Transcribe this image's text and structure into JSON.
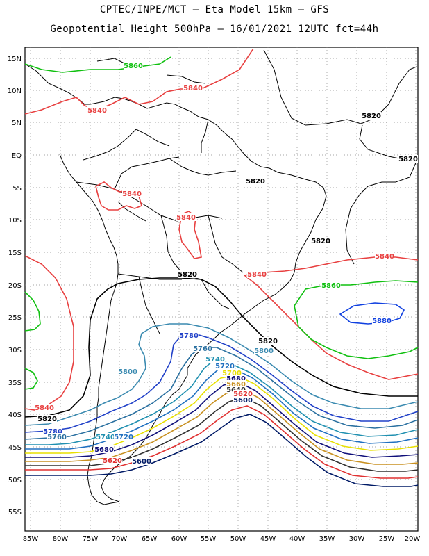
{
  "title_line1": "CPTEC/INPE/MCT –  Eta Model 15km – GFS",
  "title_line2": "Geopotential Height 500hPa – 16/01/2021 12UTC fct=44h",
  "lat_labels": [
    "15N",
    "10N",
    "5N",
    "EQ",
    "5S",
    "10S",
    "15S",
    "20S",
    "25S",
    "30S",
    "35S",
    "40S",
    "45S",
    "50S",
    "55S"
  ],
  "lon_labels": [
    "85W",
    "80W",
    "75W",
    "70W",
    "65W",
    "60W",
    "55W",
    "50W",
    "45W",
    "40W",
    "35W",
    "30W",
    "25W",
    "20W"
  ],
  "contour_colors": {
    "5600": "#001a66",
    "5620": "#e03030",
    "5640": "#303030",
    "5660": "#c89020",
    "5680": "#10107a",
    "5700": "#e8e000",
    "5720": "#2070c0",
    "5740": "#2090b0",
    "5760": "#2a70a0",
    "5780": "#2040c8",
    "5800": "#3a8ab0",
    "5820": "#000000",
    "5840": "#e84040",
    "5860": "#10c010",
    "5880": "#1040e0"
  },
  "contour_labels": [
    {
      "text": "5860",
      "color": "#10c010"
    },
    {
      "text": "5840",
      "color": "#e84040"
    },
    {
      "text": "5840",
      "color": "#e84040"
    },
    {
      "text": "5820",
      "color": "#000000"
    },
    {
      "text": "5820",
      "color": "#000000"
    },
    {
      "text": "5820",
      "color": "#000000"
    },
    {
      "text": "5840",
      "color": "#e84040"
    },
    {
      "text": "5840",
      "color": "#e84040"
    },
    {
      "text": "5820",
      "color": "#000000"
    },
    {
      "text": "5820",
      "color": "#000000"
    },
    {
      "text": "5840",
      "color": "#e84040"
    },
    {
      "text": "5840",
      "color": "#e84040"
    },
    {
      "text": "5860",
      "color": "#10c010"
    },
    {
      "text": "5880",
      "color": "#1040e0"
    },
    {
      "text": "5820",
      "color": "#000000"
    },
    {
      "text": "5780",
      "color": "#2040c8"
    },
    {
      "text": "5800",
      "color": "#3a8ab0"
    },
    {
      "text": "5760",
      "color": "#2a70a0"
    },
    {
      "text": "5740",
      "color": "#2090b0"
    },
    {
      "text": "5720",
      "color": "#2070c0"
    },
    {
      "text": "5800",
      "color": "#3a8ab0"
    },
    {
      "text": "5700",
      "color": "#e8e000"
    },
    {
      "text": "5680",
      "color": "#10107a"
    },
    {
      "text": "5660",
      "color": "#c89020"
    },
    {
      "text": "5640",
      "color": "#303030"
    },
    {
      "text": "5620",
      "color": "#e03030"
    },
    {
      "text": "5600",
      "color": "#001a66"
    },
    {
      "text": "5840",
      "color": "#e84040"
    },
    {
      "text": "5820",
      "color": "#000000"
    },
    {
      "text": "5780",
      "color": "#2040c8"
    },
    {
      "text": "5760",
      "color": "#2a70a0"
    },
    {
      "text": "5740",
      "color": "#2090b0"
    },
    {
      "text": "5720",
      "color": "#2070c0"
    },
    {
      "text": "5680",
      "color": "#10107a"
    },
    {
      "text": "5620",
      "color": "#e03030"
    },
    {
      "text": "5600",
      "color": "#001a66"
    }
  ]
}
